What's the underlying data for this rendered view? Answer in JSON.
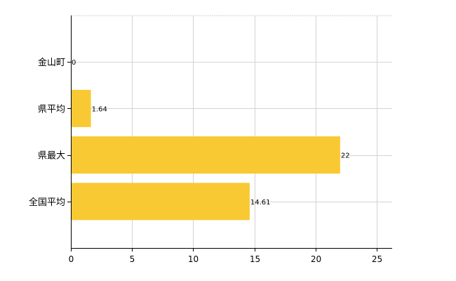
{
  "chart_data": {
    "type": "bar",
    "orientation": "horizontal",
    "categories": [
      "金山町",
      "県平均",
      "県最大",
      "全国平均"
    ],
    "values": [
      0,
      1.64,
      22,
      14.61
    ],
    "value_labels": [
      "0",
      "1.64",
      "22",
      "14.61"
    ],
    "xlim": [
      0,
      26.25
    ],
    "xticks": [
      0,
      5,
      10,
      15,
      20,
      25
    ],
    "xtick_labels": [
      "0",
      "5",
      "10",
      "15",
      "20",
      "25"
    ],
    "grid": true,
    "colors": {
      "bar": "#F9C933",
      "grid": "#D3D3D3",
      "axis": "#000000"
    }
  }
}
